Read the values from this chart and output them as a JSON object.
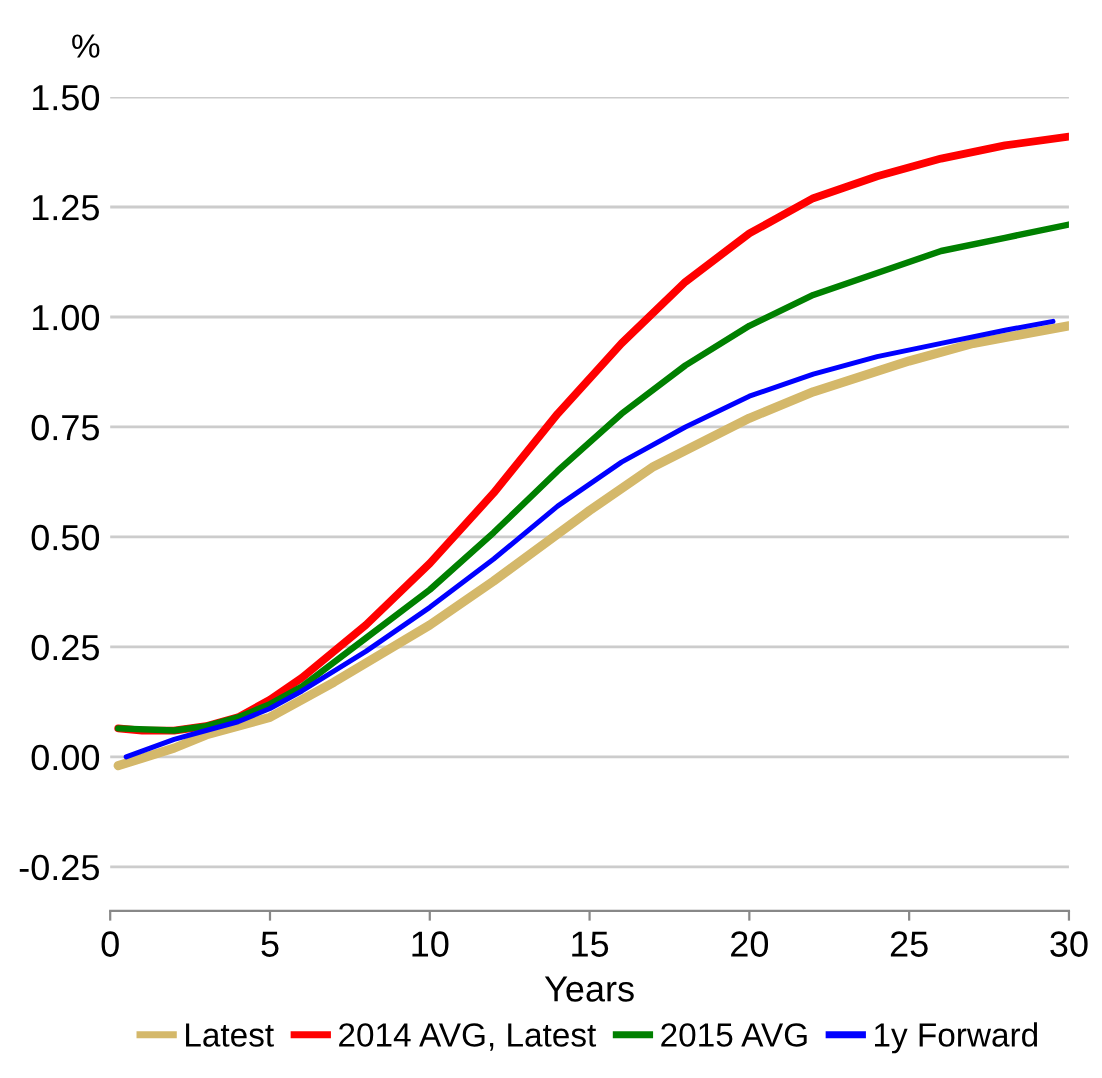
{
  "chart_data": {
    "type": "line",
    "xlabel": "Years",
    "ylabel": "%",
    "xlim": [
      0,
      30
    ],
    "xticks": [
      0,
      5,
      10,
      15,
      20,
      25,
      30
    ],
    "ylim": [
      -0.35,
      1.5
    ],
    "yticks": [
      {
        "value": -0.25,
        "label": "-0.25"
      },
      {
        "value": 0,
        "label": "0.00"
      },
      {
        "value": 0.25,
        "label": "0.25"
      },
      {
        "value": 0.5,
        "label": "0.50"
      },
      {
        "value": 0.75,
        "label": "0.75"
      },
      {
        "value": 1,
        "label": "1.00"
      },
      {
        "value": 1.25,
        "label": "1.25"
      },
      {
        "value": 1.5,
        "label": "1.50"
      }
    ],
    "grid": "y",
    "legend": "bottom",
    "marker": "none",
    "line_style": "solid",
    "series": [
      {
        "name": "Latest",
        "color": "#d4b86a",
        "x": [
          0.25,
          2,
          3,
          5,
          7,
          10,
          12,
          15,
          17,
          20,
          22,
          25,
          27,
          30
        ],
        "values": [
          -0.02,
          0.02,
          0.05,
          0.09,
          0.17,
          0.3,
          0.4,
          0.56,
          0.66,
          0.77,
          0.83,
          0.9,
          0.94,
          0.98
        ]
      },
      {
        "name": "2014 AVG, Latest",
        "color": "#ff0000",
        "x": [
          0.25,
          1,
          2,
          3,
          4,
          5,
          6,
          8,
          10,
          12,
          14,
          16,
          18,
          20,
          22,
          24,
          26,
          28,
          30
        ],
        "values": [
          0.065,
          0.06,
          0.06,
          0.07,
          0.09,
          0.13,
          0.18,
          0.3,
          0.44,
          0.6,
          0.78,
          0.94,
          1.08,
          1.19,
          1.27,
          1.32,
          1.36,
          1.39,
          1.41
        ]
      },
      {
        "name": "2015 AVG",
        "color": "#008000",
        "x": [
          0.25,
          2,
          3,
          4,
          5,
          6,
          8,
          10,
          12,
          14,
          16,
          18,
          20,
          22,
          24,
          26,
          28,
          30
        ],
        "values": [
          0.065,
          0.06,
          0.07,
          0.09,
          0.12,
          0.16,
          0.27,
          0.38,
          0.51,
          0.65,
          0.78,
          0.89,
          0.98,
          1.05,
          1.1,
          1.15,
          1.18,
          1.21
        ]
      },
      {
        "name": "1y Forward",
        "color": "#0000ff",
        "x": [
          0.5,
          2,
          3,
          4,
          5,
          6,
          8,
          10,
          12,
          14,
          16,
          18,
          20,
          22,
          24,
          26,
          28,
          29.5
        ],
        "values": [
          0.0,
          0.04,
          0.06,
          0.08,
          0.11,
          0.15,
          0.24,
          0.34,
          0.45,
          0.57,
          0.67,
          0.75,
          0.82,
          0.87,
          0.91,
          0.94,
          0.97,
          0.99
        ]
      }
    ]
  }
}
